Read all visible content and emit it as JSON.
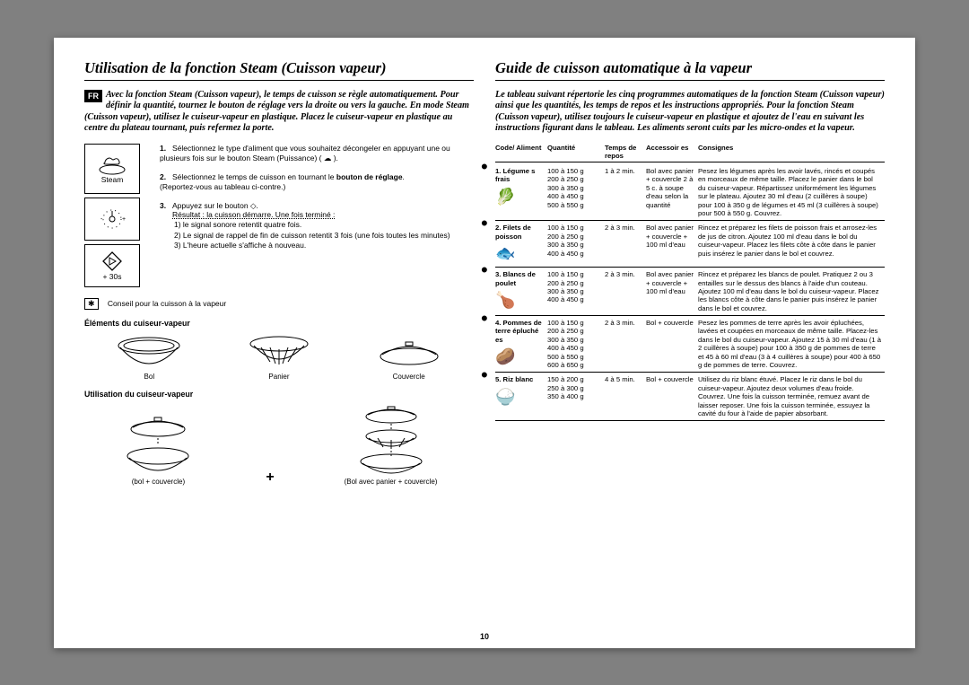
{
  "page_number": "10",
  "fr_badge": "FR",
  "left": {
    "title": "Utilisation de la fonction Steam (Cuisson vapeur)",
    "intro": "Avec la fonction Steam (Cuisson vapeur), le temps de cuisson se règle automatiquement. Pour définir la quantité, tournez le bouton de réglage vers la droite ou vers la gauche. En mode Steam (Cuisson vapeur), utilisez le cuiseur-vapeur en plastique. Placez le cuiseur-vapeur en plastique au centre du plateau tournant, puis refermez la porte.",
    "icon_steam": "Steam",
    "icon_30s": "+ 30s",
    "step1": "Sélectionnez le type d'aliment que vous souhaitez décongeler en appuyant une ou plusieurs fois sur le bouton Steam (Puissance) ( ☁ ).",
    "step2_a": "Sélectionnez le temps de cuisson en tournant le ",
    "step2_bold": "bouton de réglage",
    "step2_b": ".",
    "step2_note": "(Reportez-vous au tableau ci-contre.)",
    "step3_a": "Appuyez sur le bouton ◇.",
    "step3_res": "Résultat :  la cuisson démarre. Une fois terminé :",
    "step3_1": "1)  le signal sonore retentit quatre fois.",
    "step3_2": "2)  Le signal de rappel de fin de cuisson retentit 3 fois (une fois toutes les minutes)",
    "step3_3": "3)  L'heure actuelle s'affiche à nouveau.",
    "tip": "Conseil pour la cuisson à la vapeur",
    "subh1": "Éléments du cuiseur-vapeur",
    "el_bol": "Bol",
    "el_panier": "Panier",
    "el_couv": "Couvercle",
    "subh2": "Utilisation du cuiseur-vapeur",
    "usage_left": "(bol + couvercle)",
    "usage_right": "(Bol avec panier + couvercle)"
  },
  "right": {
    "title": "Guide de cuisson automatique à la vapeur",
    "intro": "Le tableau suivant répertorie les cinq programmes automatiques de la fonction Steam (Cuisson vapeur) ainsi que les quantités, les temps de repos et les instructions appropriés. Pour la fonction Steam (Cuisson vapeur), utilisez toujours le cuiseur-vapeur en plastique et ajoutez de l'eau en suivant les instructions figurant dans le tableau. Les aliments seront cuits par les micro-ondes et la vapeur.",
    "head": {
      "code": "Code/ Aliment",
      "qty": "Quantité",
      "time": "Temps de repos",
      "acc": "Accessoir es",
      "inst": "Consignes"
    },
    "rows": [
      {
        "code": "1. Légume s frais",
        "icon": "🥬",
        "qty": "100 à 150 g\n200 à 250 g\n300 à 350 g\n400 à 450 g\n500 à 550 g",
        "time": "1 à 2 min.",
        "acc": "Bol avec panier + couvercle 2 à 5 c. à soupe d'eau selon la quantité",
        "inst": "Pesez les légumes après les avoir lavés, rincés et coupés en morceaux de même taille. Placez le panier dans le bol du cuiseur-vapeur. Répartissez uniformément les légumes sur le plateau. Ajoutez 30 ml d'eau (2 cuillères à soupe) pour 100 à 350 g de légumes et 45 ml (3 cuillères à soupe) pour 500 à 550 g. Couvrez."
      },
      {
        "code": "2. Filets de poisson",
        "icon": "🐟",
        "qty": "100 à 150 g\n200 à 250 g\n300 à 350 g\n400 à 450 g",
        "time": "2 à 3 min.",
        "acc": "Bol avec panier + couvercle + 100 ml d'eau",
        "inst": "Rincez et préparez les filets de poisson frais et arrosez-les de jus de citron. Ajoutez 100 ml d'eau dans le bol du cuiseur-vapeur. Placez les filets côte à côte dans le panier puis insérez le panier dans le bol et couvrez."
      },
      {
        "code": "3. Blancs de poulet",
        "icon": "🍗",
        "qty": "100 à 150 g\n200 à 250 g\n300 à 350 g\n400 à 450 g",
        "time": "2 à 3 min.",
        "acc": "Bol avec panier + couvercle + 100 ml d'eau",
        "inst": "Rincez et préparez les blancs de poulet. Pratiquez 2 ou 3 entailles sur le dessus des blancs à l'aide d'un couteau. Ajoutez 100 ml d'eau dans le bol du cuiseur-vapeur. Placez les blancs côte à côte dans le panier puis insérez le panier dans le bol et couvrez."
      },
      {
        "code": "4. Pommes de terre épluché es",
        "icon": "🥔",
        "qty": "100 à 150 g\n200 à 250 g\n300 à 350 g\n400 à 450 g\n500 à 550 g\n600 à 650 g",
        "time": "2 à 3 min.",
        "acc": "Bol + couvercle",
        "inst": "Pesez les pommes de terre après les avoir épluchées, lavées et coupées en morceaux de même taille. Placez-les dans le bol du cuiseur-vapeur. Ajoutez 15 à 30 ml d'eau (1 à 2 cuillères à soupe) pour 100 à 350 g de pommes de terre et 45 à 60 ml d'eau (3 à 4 cuillères à soupe) pour 400 à 650 g de pommes de terre. Couvrez."
      },
      {
        "code": "5. Riz blanc",
        "icon": "🍚",
        "qty": "150 à 200 g\n250 à 300 g\n350 à 400 g",
        "time": "4 à 5 min.",
        "acc": "Bol + couvercle",
        "inst": "Utilisez du riz blanc étuvé. Placez le riz dans le bol du cuiseur-vapeur. Ajoutez deux volumes d'eau froide. Couvrez. Une fois la cuisson terminée, remuez avant de laisser reposer. Une fois la cuisson terminée, essuyez la cavité du four à l'aide de papier absorbant."
      }
    ]
  },
  "svg": {
    "bowl_color": "#000000",
    "bg": "#ffffff"
  }
}
